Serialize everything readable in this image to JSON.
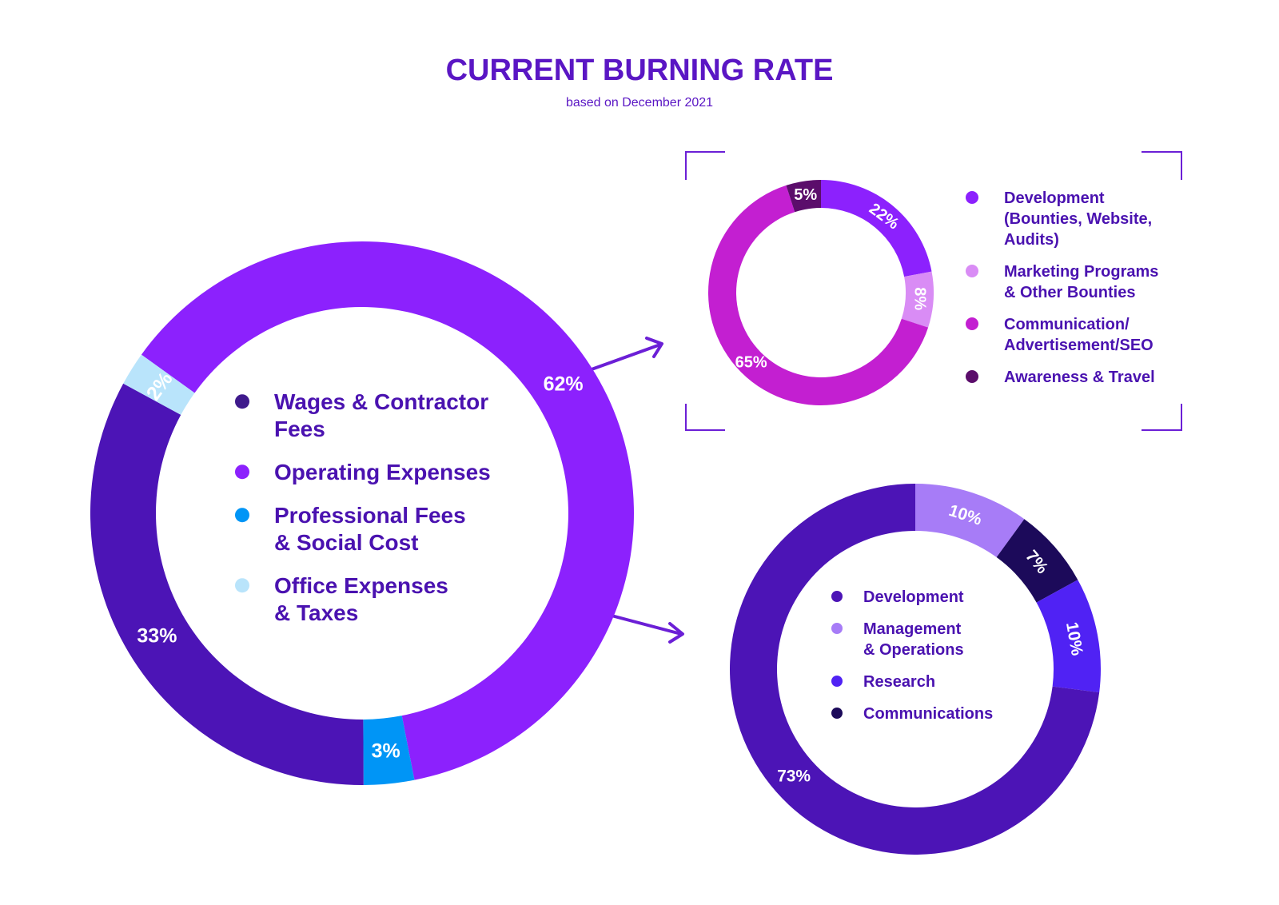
{
  "header": {
    "title": "CURRENT BURNING RATE",
    "subtitle": "based on December 2021"
  },
  "chart_data": [
    {
      "type": "pie",
      "variant": "donut",
      "title": "",
      "slices": [
        {
          "label": "Operating Expenses",
          "value": 62,
          "display": "62%",
          "color": "#8c21fd"
        },
        {
          "label": "Professional Fees & Social Cost",
          "value": 3,
          "display": "3%",
          "color": "#0095f6"
        },
        {
          "label": "Wages & Contractor Fees",
          "value": 33,
          "display": "33%",
          "color": "#4c14b6"
        },
        {
          "label": "Office Expenses & Taxes",
          "value": 2,
          "display": "2%",
          "color": "#b9e4fb"
        }
      ],
      "legend": [
        {
          "lines": [
            "Wages & Contractor",
            "Fees"
          ],
          "color": "#3f1a8c"
        },
        {
          "lines": [
            "Operating Expenses"
          ],
          "color": "#8c21fd"
        },
        {
          "lines": [
            "Professional Fees",
            "& Social Cost"
          ],
          "color": "#0095f6"
        },
        {
          "lines": [
            "Office Expenses",
            "& Taxes"
          ],
          "color": "#b9e4fb"
        }
      ]
    },
    {
      "type": "pie",
      "variant": "donut",
      "title": "",
      "slices": [
        {
          "label": "Development (Bounties, Website, Audits)",
          "value": 22,
          "display": "22%",
          "color": "#8c21fd"
        },
        {
          "label": "Marketing Programs & Other Bounties",
          "value": 8,
          "display": "8%",
          "color": "#d98cf5"
        },
        {
          "label": "Communication/ Advertisement/SEO",
          "value": 65,
          "display": "65%",
          "color": "#c31fd1"
        },
        {
          "label": "Awareness & Travel",
          "value": 5,
          "display": "5%",
          "color": "#5b0d6b"
        }
      ],
      "legend": [
        {
          "lines": [
            "Development",
            "(Bounties, Website,",
            "Audits)"
          ],
          "color": "#8c21fd"
        },
        {
          "lines": [
            "Marketing Programs",
            "& Other Bounties"
          ],
          "color": "#d98cf5"
        },
        {
          "lines": [
            "Communication/",
            "Advertisement/SEO"
          ],
          "color": "#c31fd1"
        },
        {
          "lines": [
            "Awareness & Travel"
          ],
          "color": "#5b0d6b"
        }
      ]
    },
    {
      "type": "pie",
      "variant": "donut",
      "title": "",
      "slices": [
        {
          "label": "Management & Operations",
          "value": 10,
          "display": "10%",
          "color": "#a77cf7"
        },
        {
          "label": "Communications",
          "value": 7,
          "display": "7%",
          "color": "#1c0a5a"
        },
        {
          "label": "Research",
          "value": 10,
          "display": "10%",
          "color": "#5022f4"
        },
        {
          "label": "Development",
          "value": 73,
          "display": "73%",
          "color": "#4c14b6"
        }
      ],
      "legend": [
        {
          "lines": [
            "Development"
          ],
          "color": "#4c14b6"
        },
        {
          "lines": [
            "Management",
            "& Operations"
          ],
          "color": "#a77cf7"
        },
        {
          "lines": [
            "Research"
          ],
          "color": "#5022f4"
        },
        {
          "lines": [
            "Communications"
          ],
          "color": "#1c0a5a"
        }
      ]
    }
  ],
  "colors": {
    "accent": "#5a16c4",
    "arrow": "#6b1fd6",
    "frame": "#6b1fd6"
  }
}
